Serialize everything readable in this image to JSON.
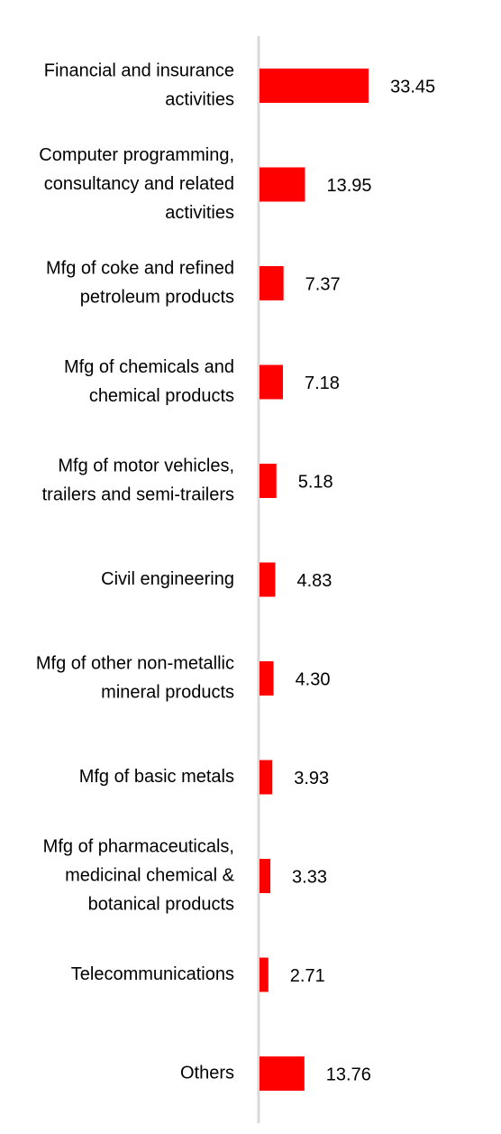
{
  "chart_data": {
    "type": "bar",
    "orientation": "horizontal",
    "color": "#ff0000",
    "categories": [
      [
        "Financial and insurance",
        "activities"
      ],
      [
        "Computer programming,",
        "consultancy and related",
        "activities"
      ],
      [
        "Mfg of coke and refined",
        "petroleum products"
      ],
      [
        "Mfg of chemicals and",
        "chemical products"
      ],
      [
        "Mfg of motor vehicles,",
        "trailers and semi-trailers"
      ],
      [
        "Civil engineering"
      ],
      [
        "Mfg of other non-metallic",
        "mineral products"
      ],
      [
        "Mfg of basic metals"
      ],
      [
        "Mfg of pharmaceuticals,",
        "medicinal chemical &",
        "botanical products"
      ],
      [
        "Telecommunications"
      ],
      [
        "Others"
      ]
    ],
    "values": [
      33.45,
      13.95,
      7.37,
      7.18,
      5.18,
      4.83,
      4.3,
      3.93,
      3.33,
      2.71,
      13.76
    ],
    "value_labels": [
      "33.45",
      "13.95",
      "7.37",
      "7.18",
      "5.18",
      "4.83",
      "4.30",
      "3.93",
      "3.33",
      "2.71",
      "13.76"
    ]
  }
}
